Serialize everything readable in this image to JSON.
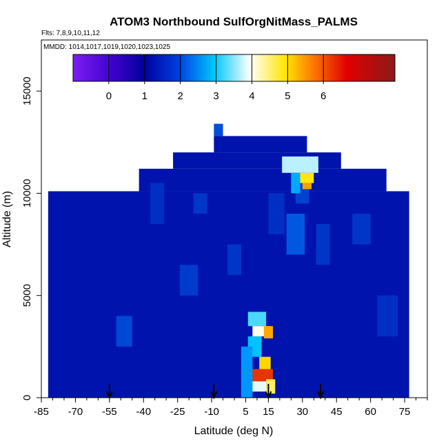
{
  "chart_data": {
    "type": "heatmap",
    "title": "ATOM3 Northbound SulfOrgNitMass_PALMS",
    "flights_label": "Flts: 7,8,9,10,11,12",
    "dates_label": "MMDD: 1014,1017,1019,1020,1023,1025",
    "xlabel": "Latitude (deg N)",
    "ylabel": "Altitude (m)",
    "xlim": [
      -85,
      85
    ],
    "ylim": [
      0,
      17500
    ],
    "x_ticks": [
      -85,
      -70,
      -55,
      -40,
      -25,
      -10,
      5,
      15,
      30,
      45,
      60,
      75
    ],
    "y_ticks": [
      0,
      5000,
      10000,
      15000
    ],
    "colorbar": {
      "ticks": [
        0,
        1,
        2,
        3,
        4,
        5,
        6
      ],
      "range": [
        -1.0,
        8.0
      ],
      "colors": [
        "#7b1df5",
        "#00009e",
        "#0080ff",
        "#00c8ff",
        "#ffffff",
        "#ffe600",
        "#ff7f00",
        "#d00000",
        "#8b1a1a"
      ]
    },
    "background_value": 0.3,
    "cells": [
      {
        "lat": [
          -82,
          77
        ],
        "alt": [
          0,
          10100
        ],
        "v": 0.3
      },
      {
        "lat": [
          -42,
          67
        ],
        "alt": [
          10100,
          11200
        ],
        "v": 0.3
      },
      {
        "lat": [
          -27,
          47
        ],
        "alt": [
          11200,
          12000
        ],
        "v": 0.3
      },
      {
        "lat": [
          -9,
          32
        ],
        "alt": [
          12000,
          12800
        ],
        "v": 0.3
      },
      {
        "lat": [
          -9,
          -5
        ],
        "alt": [
          12800,
          13400
        ],
        "v": 0.8
      },
      {
        "lat": [
          -37,
          -31
        ],
        "alt": [
          8500,
          10500
        ],
        "v": 0.55
      },
      {
        "lat": [
          -52,
          -45
        ],
        "alt": [
          2500,
          4000
        ],
        "v": 0.75
      },
      {
        "lat": [
          -24,
          -16
        ],
        "alt": [
          5000,
          6500
        ],
        "v": 0.65
      },
      {
        "lat": [
          -18,
          -12
        ],
        "alt": [
          9000,
          10000
        ],
        "v": 0.6
      },
      {
        "lat": [
          -3,
          3
        ],
        "alt": [
          6000,
          7500
        ],
        "v": 0.6
      },
      {
        "lat": [
          15,
          22
        ],
        "alt": [
          8000,
          10000
        ],
        "v": 0.55
      },
      {
        "lat": [
          23,
          31
        ],
        "alt": [
          7000,
          9000
        ],
        "v": 0.9
      },
      {
        "lat": [
          27,
          33
        ],
        "alt": [
          9500,
          10600
        ],
        "v": 0.7
      },
      {
        "lat": [
          36,
          42
        ],
        "alt": [
          6500,
          8500
        ],
        "v": 0.6
      },
      {
        "lat": [
          52,
          60
        ],
        "alt": [
          7500,
          9000
        ],
        "v": 0.6
      },
      {
        "lat": [
          63,
          72
        ],
        "alt": [
          3000,
          5000
        ],
        "v": 0.55
      },
      {
        "lat": [
          21,
          37
        ],
        "alt": [
          11000,
          11800
        ],
        "v": 3.2
      },
      {
        "lat": [
          28,
          35
        ],
        "alt": [
          10500,
          11000
        ],
        "v": 4.6
      },
      {
        "lat": [
          30,
          34
        ],
        "alt": [
          10200,
          10500
        ],
        "v": 5.4
      },
      {
        "lat": [
          25,
          29
        ],
        "alt": [
          10000,
          11000
        ],
        "v": 1.9
      },
      {
        "lat": [
          6,
          14
        ],
        "alt": [
          3500,
          4200
        ],
        "v": 2.7
      },
      {
        "lat": [
          8,
          16
        ],
        "alt": [
          3000,
          3500
        ],
        "v": 3.6
      },
      {
        "lat": [
          13,
          17
        ],
        "alt": [
          2900,
          3500
        ],
        "v": 5.3
      },
      {
        "lat": [
          6,
          12
        ],
        "alt": [
          2000,
          3000
        ],
        "v": 2.3
      },
      {
        "lat": [
          11,
          16
        ],
        "alt": [
          1400,
          2000
        ],
        "v": 4.8
      },
      {
        "lat": [
          5,
          17
        ],
        "alt": [
          800,
          1400
        ],
        "v": 6.4
      },
      {
        "lat": [
          7,
          14
        ],
        "alt": [
          300,
          800
        ],
        "v": 3.4
      },
      {
        "lat": [
          14,
          18
        ],
        "alt": [
          200,
          900
        ],
        "v": 4.2
      },
      {
        "lat": [
          3,
          8
        ],
        "alt": [
          0,
          2500
        ],
        "v": 1.6
      }
    ],
    "markers": [
      {
        "lat": -55,
        "label": "arrow"
      },
      {
        "lat": -9,
        "label": "arrow"
      },
      {
        "lat": 15,
        "label": "arrow"
      },
      {
        "lat": 38,
        "label": "arrow"
      }
    ]
  }
}
